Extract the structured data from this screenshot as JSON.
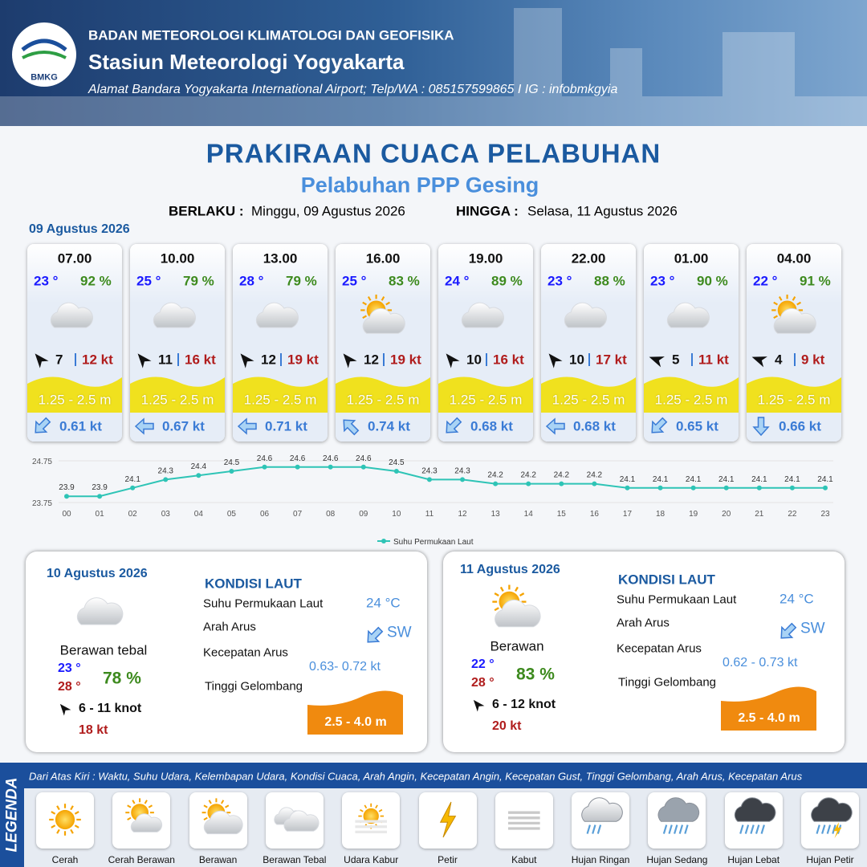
{
  "header": {
    "logo": "BMKG",
    "agency": "BADAN METEOROLOGI KLIMATOLOGI DAN GEOFISIKA",
    "station": "Stasiun Meteorologi Yogyakarta",
    "address": "Alamat Bandara Yogyakarta International Airport; Telp/WA : 085157599865 I IG : infobmkgyia"
  },
  "title": "PRAKIRAAN CUACA PELABUHAN",
  "subtitle": "Pelabuhan PPP Gesing",
  "validity": {
    "from_label": "BERLAKU :",
    "from": "Minggu, 09 Agustus 2026",
    "to_label": "HINGGA :",
    "to": "Selasa, 11 Agustus 2026"
  },
  "date": "09 Agustus 2026",
  "forecasts": [
    {
      "time": "07.00",
      "temp": "23 °",
      "humidity": "92 %",
      "wind": "7",
      "gust": "12 kt",
      "wave": "1.25 - 2.5 m",
      "current": "0.61 kt"
    },
    {
      "time": "10.00",
      "temp": "25 °",
      "humidity": "79 %",
      "wind": "11",
      "gust": "16 kt",
      "wave": "1.25 - 2.5 m",
      "current": "0.67 kt"
    },
    {
      "time": "13.00",
      "temp": "28 °",
      "humidity": "79 %",
      "wind": "12",
      "gust": "19 kt",
      "wave": "1.25 - 2.5 m",
      "current": "0.71 kt"
    },
    {
      "time": "16.00",
      "temp": "25 °",
      "humidity": "83 %",
      "wind": "12",
      "gust": "19 kt",
      "wave": "1.25 - 2.5 m",
      "current": "0.74 kt"
    },
    {
      "time": "19.00",
      "temp": "24 °",
      "humidity": "89 %",
      "wind": "10",
      "gust": "16 kt",
      "wave": "1.25 - 2.5 m",
      "current": "0.68 kt"
    },
    {
      "time": "22.00",
      "temp": "23 °",
      "humidity": "88 %",
      "wind": "10",
      "gust": "17 kt",
      "wave": "1.25 - 2.5 m",
      "current": "0.68 kt"
    },
    {
      "time": "01.00",
      "temp": "23 °",
      "humidity": "90 %",
      "wind": "5",
      "gust": "11 kt",
      "wave": "1.25 - 2.5 m",
      "current": "0.65 kt"
    },
    {
      "time": "04.00",
      "temp": "22 °",
      "humidity": "91 %",
      "wind": "4",
      "gust": "9 kt",
      "wave": "1.25 - 2.5 m",
      "current": "0.66 kt"
    }
  ],
  "chart_data": {
    "type": "line",
    "categories": [
      "00",
      "01",
      "02",
      "03",
      "04",
      "05",
      "06",
      "07",
      "08",
      "09",
      "10",
      "11",
      "12",
      "13",
      "14",
      "15",
      "16",
      "17",
      "18",
      "19",
      "20",
      "21",
      "22",
      "23"
    ],
    "series": [
      {
        "name": "Suhu Permukaan Laut",
        "color": "#2ec4b6",
        "values": [
          23.9,
          23.9,
          24.1,
          24.3,
          24.4,
          24.5,
          24.6,
          24.6,
          24.6,
          24.6,
          24.5,
          24.3,
          24.3,
          24.2,
          24.2,
          24.2,
          24.2,
          24.1,
          24.1,
          24.1,
          24.1,
          24.1,
          24.1,
          24.1
        ]
      }
    ],
    "ylim": [
      23.75,
      24.75
    ],
    "yticks": [
      23.75,
      24.75
    ],
    "grid": true,
    "legend": "bottom"
  },
  "daily": [
    {
      "date": "10 Agustus 2026",
      "weather": "Berawan tebal",
      "temp_min": "23 °",
      "temp_max": "28 °",
      "humidity": "78 %",
      "wind": "6  - 11 knot",
      "gust": "18 kt",
      "sea_title": "KONDISI LAUT",
      "sst_label": "Suhu Permukaan Laut",
      "sst": "24 °C",
      "current_dir_label": "Arah Arus",
      "current_dir": "SW",
      "current_speed_label": "Kecepatan Arus",
      "current_speed": "0.63- 0.72 kt",
      "wave_label": "Tinggi Gelombang",
      "wave": "2.5 - 4.0 m"
    },
    {
      "date": "11 Agustus 2026",
      "weather": "Berawan",
      "temp_min": "22 °",
      "temp_max": "28 °",
      "humidity": "83 %",
      "wind": "6  - 12 knot",
      "gust": "20 kt",
      "sea_title": "KONDISI LAUT",
      "sst_label": "Suhu Permukaan Laut",
      "sst": "24 °C",
      "current_dir_label": "Arah Arus",
      "current_dir": "SW",
      "current_speed_label": "Kecepatan Arus",
      "current_speed": "0.62 - 0.73 kt",
      "wave_label": "Tinggi Gelombang",
      "wave": "2.5 - 4.0 m"
    }
  ],
  "legend": {
    "title": "LEGENDA",
    "description": "Dari Atas Kiri : Waktu, Suhu Udara, Kelembapan Udara, Kondisi Cuaca, Arah Angin, Kecepatan Angin, Kecepatan Gust, Tinggi Gelombang, Arah Arus, Kecepatan Arus",
    "items": [
      "Cerah",
      "Cerah Berawan",
      "Berawan",
      "Berawan Tebal",
      "Udara Kabur",
      "Petir",
      "Kabut",
      "Hujan Ringan",
      "Hujan Sedang",
      "Hujan Lebat",
      "Hujan Petir"
    ]
  }
}
